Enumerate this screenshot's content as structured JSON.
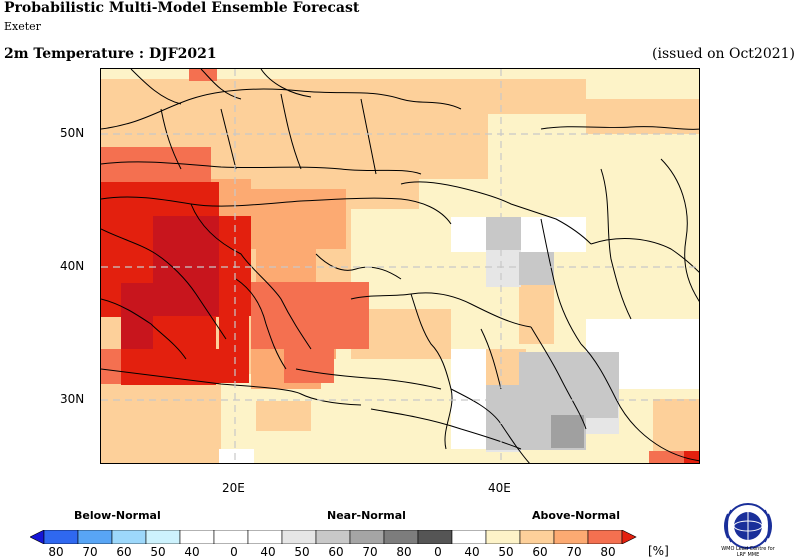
{
  "header": {
    "title": "Probabilistic Multi-Model Ensemble Forecast",
    "subtitle": "Exeter",
    "variable_label": "2m Temperature : DJF2021",
    "issued": "(issued on Oct2021)"
  },
  "map": {
    "lat_labels": [
      "50N",
      "40N",
      "30N"
    ],
    "lon_labels": [
      "20E",
      "40E"
    ],
    "grid_lines": "dashed",
    "colors": {
      "near_normal_light": "#e6e6e6",
      "near_normal_mid": "#c8c8c8",
      "near_normal_dark": "#969696",
      "above_40": "#fdf3c8",
      "above_50": "#fdd09a",
      "above_60": "#fcaa72",
      "above_70": "#f47050",
      "above_80": "#e3200e",
      "above_90": "#c8151d"
    }
  },
  "legend": {
    "below_label": "Below-Normal",
    "near_label": "Near-Normal",
    "above_label": "Above-Normal",
    "ticks": [
      "80",
      "70",
      "60",
      "50",
      "40",
      "0",
      "40",
      "50",
      "60",
      "70",
      "80",
      "0",
      "40",
      "50",
      "60",
      "70",
      "80"
    ],
    "unit": "[%]",
    "colors": {
      "below": [
        "#1515d6",
        "#2f68f0",
        "#58a5f5",
        "#9dd8fb",
        "#cdf2fd"
      ],
      "near": [
        "#ffffff",
        "#e6e6e6",
        "#c8c8c8",
        "#a5a5a5",
        "#7d7d7d",
        "#555555"
      ],
      "above": [
        "#ffffff",
        "#fdf3c8",
        "#fdd09a",
        "#fcaa72",
        "#f47050",
        "#e3200e"
      ]
    }
  },
  "logo": {
    "text_line1": "WMO Lead Centre for",
    "text_line2": "LRF MME"
  }
}
